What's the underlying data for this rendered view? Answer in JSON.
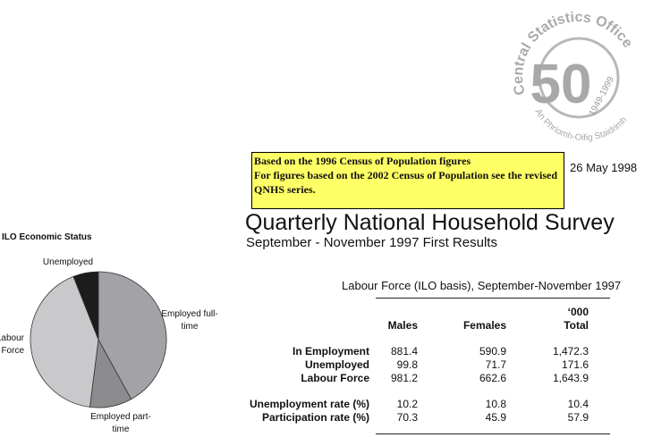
{
  "logo": {
    "name": "Central Statistics Office",
    "number": "50",
    "years": "1949-1999",
    "irish_name": "An Phríomh-Oifig Staidrimh"
  },
  "notice": [
    "Based on the 1996 Census of Population figures",
    "For figures based on the 2002 Census of Population see the revised QNHS series."
  ],
  "date": "26 May 1998",
  "title": "Quarterly National Household Survey",
  "subtitle": "September - November 1997 First Results",
  "chart_data": {
    "type": "pie",
    "title": "ILO Economic Status",
    "categories": [
      "Employed full-time",
      "Employed part-time",
      "Not in Labour Force",
      "Unemployed"
    ],
    "values": [
      42,
      10,
      42,
      6
    ],
    "colors": [
      "#a3a3a7",
      "#8c8c8f",
      "#c9c9cc",
      "#1c1c1c"
    ]
  },
  "table": {
    "caption": "Labour Force (ILO basis), September-November 1997",
    "unit": "‘000",
    "columns": [
      "Males",
      "Females",
      "Total"
    ],
    "groups": [
      {
        "rows": [
          [
            "In Employment",
            "881.4",
            "590.9",
            "1,472.3"
          ],
          [
            "Unemployed",
            "99.8",
            "71.7",
            "171.6"
          ],
          [
            "Labour Force",
            "981.2",
            "662.6",
            "1,643.9"
          ]
        ]
      },
      {
        "rows": [
          [
            "Unemployment rate (%)",
            "10.2",
            "10.8",
            "10.4"
          ],
          [
            "Participation rate (%)",
            "70.3",
            "45.9",
            "57.9"
          ]
        ]
      }
    ]
  }
}
